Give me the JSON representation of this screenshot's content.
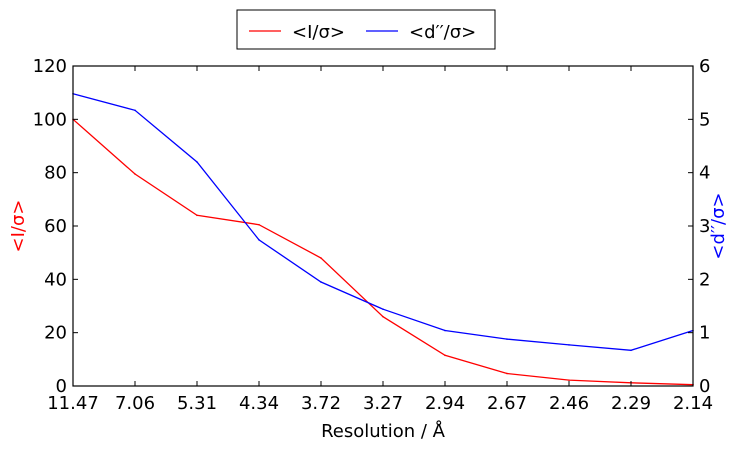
{
  "chart_data": {
    "type": "line",
    "categories": [
      "11.47",
      "7.06",
      "5.31",
      "4.34",
      "3.72",
      "3.27",
      "2.94",
      "2.67",
      "2.46",
      "2.29",
      "2.14"
    ],
    "xlabel": "Resolution / Å",
    "left_axis": {
      "label": "<I/σ>",
      "color": "#ff0000",
      "ylim": [
        0,
        120
      ],
      "ticks": [
        "0",
        "20",
        "40",
        "60",
        "80",
        "100",
        "120"
      ]
    },
    "right_axis": {
      "label": "<d′′/σ>",
      "color": "#0000ff",
      "ylim": [
        0,
        6
      ],
      "ticks": [
        "0",
        "1",
        "2",
        "3",
        "4",
        "5",
        "6"
      ]
    },
    "series": [
      {
        "name": "<I/σ>",
        "axis": "left",
        "color": "#ff0000",
        "values": [
          100,
          79.5,
          64,
          60.5,
          48,
          26,
          11.5,
          4.7,
          2.2,
          1.2,
          0.5
        ]
      },
      {
        "name": "<d′′/σ>",
        "axis": "right",
        "color": "#0000ff",
        "values": [
          5.48,
          5.17,
          4.2,
          2.74,
          1.95,
          1.44,
          1.04,
          0.88,
          0.77,
          0.67,
          1.04
        ]
      }
    ],
    "legend_position": "top-center",
    "grid": false
  }
}
